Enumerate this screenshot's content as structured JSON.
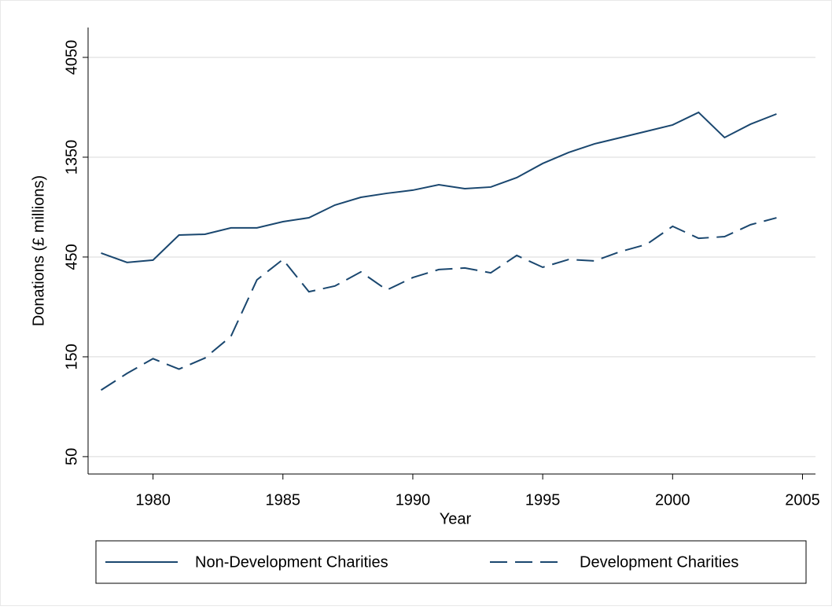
{
  "chart_data": {
    "type": "line",
    "x_label": "Year",
    "y_label": "Donations (£ millions)",
    "x": [
      1978,
      1979,
      1980,
      1981,
      1982,
      1983,
      1984,
      1985,
      1986,
      1987,
      1988,
      1989,
      1990,
      1991,
      1992,
      1993,
      1994,
      1995,
      1996,
      1997,
      1998,
      1999,
      2000,
      2001,
      2002,
      2003,
      2004
    ],
    "series": [
      {
        "name": "Non-Development Charities",
        "color": "#1a476f",
        "dash": "solid",
        "values": [
          470,
          424,
          435,
          573,
          578,
          620,
          620,
          664,
          693,
          797,
          868,
          907,
          939,
          997,
          955,
          972,
          1078,
          1260,
          1422,
          1564,
          1676,
          1796,
          1925,
          2211,
          1676,
          1942,
          2172
        ]
      },
      {
        "name": "Development Charities",
        "color": "#1a476f",
        "dash": "dashed",
        "values": [
          104,
          125,
          147,
          131,
          148,
          188,
          350,
          438,
          307,
          327,
          382,
          313,
          359,
          392,
          399,
          378,
          458,
          402,
          438,
          431,
          478,
          517,
          631,
          553,
          563,
          642,
          693
        ]
      }
    ],
    "xlim": [
      1977.5,
      2005.5
    ],
    "xticks": [
      1980,
      1985,
      1990,
      1995,
      2000,
      2005
    ],
    "ylim": [
      41.3,
      5626
    ],
    "yticks": [
      50,
      150,
      450,
      1350,
      4050
    ],
    "y_scale": "log",
    "grid": true,
    "legend_position": "bottom"
  }
}
